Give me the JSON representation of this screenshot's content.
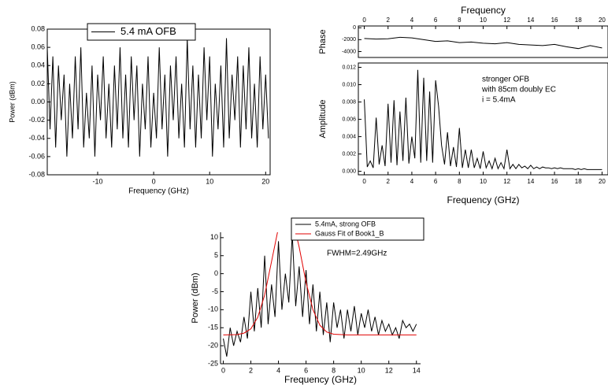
{
  "chart_data": [
    {
      "type": "line",
      "xlabel": "Frequency (GHz)",
      "ylabel": "Power (dBm)",
      "xlim": [
        -19,
        20.8
      ],
      "xticks": [
        -10,
        0,
        10,
        20
      ],
      "ylim": [
        -0.08,
        0.08
      ],
      "yticks": [
        {
          "value": -0.08,
          "label": "-0.08"
        },
        {
          "value": -0.06,
          "label": "-0.06"
        },
        {
          "value": -0.04,
          "label": "-0.04"
        },
        {
          "value": -0.02,
          "label": "-0.02"
        },
        {
          "value": 0,
          "label": "0.00"
        },
        {
          "value": 0.02,
          "label": "0.02"
        },
        {
          "value": 0.04,
          "label": "0.04"
        },
        {
          "value": 0.06,
          "label": "0.06"
        },
        {
          "value": 0.08,
          "label": "0.08"
        }
      ],
      "legend": "upper center",
      "series": [
        {
          "name": "5.4 mA OFB",
          "color": "#000000",
          "x": [
            -19,
            -18.5,
            -18,
            -17.5,
            -17,
            -16.5,
            -16,
            -15.5,
            -15,
            -14.5,
            -14,
            -13.5,
            -13,
            -12.5,
            -12,
            -11.5,
            -11,
            -10.5,
            -10,
            -9.5,
            -9,
            -8.5,
            -8,
            -7.5,
            -7,
            -6.5,
            -6,
            -5.5,
            -5,
            -4.5,
            -4,
            -3.5,
            -3,
            -2.5,
            -2,
            -1.5,
            -1,
            -0.5,
            0,
            0.5,
            1,
            1.5,
            2,
            2.5,
            3,
            3.5,
            4,
            4.5,
            5,
            5.5,
            6,
            6.5,
            7,
            7.5,
            8,
            8.5,
            9,
            9.5,
            10,
            10.5,
            11,
            11.5,
            12,
            12.5,
            13,
            13.5,
            14,
            14.5,
            15,
            15.5,
            16,
            16.5,
            17,
            17.5,
            18,
            18.5,
            19,
            19.5,
            20,
            20.5
          ],
          "values": [
            0.06,
            -0.03,
            0.05,
            -0.05,
            0.04,
            -0.02,
            0.03,
            -0.06,
            0.02,
            -0.04,
            0.05,
            -0.03,
            0.06,
            -0.05,
            0.01,
            -0.04,
            0.04,
            -0.06,
            0.03,
            -0.02,
            0.05,
            -0.04,
            0.02,
            -0.05,
            0.04,
            -0.03,
            0.06,
            -0.04,
            0.03,
            -0.05,
            0.05,
            -0.02,
            0.04,
            -0.06,
            0.02,
            -0.03,
            0.05,
            -0.05,
            0.01,
            -0.04,
            0.06,
            -0.03,
            0.03,
            -0.06,
            0.04,
            -0.02,
            0.05,
            -0.04,
            0.02,
            -0.05,
            0.07,
            -0.03,
            0.04,
            -0.05,
            0.03,
            -0.04,
            0.06,
            -0.02,
            0.05,
            -0.06,
            0.02,
            -0.03,
            0.04,
            -0.05,
            0.07,
            -0.04,
            0.03,
            -0.02,
            0.05,
            -0.05,
            0.04,
            -0.03,
            0.06,
            -0.04,
            0.02,
            -0.05,
            0.05,
            -0.03,
            0.03,
            -0.04
          ]
        }
      ]
    },
    {
      "type": "line",
      "xlabel": "Frequency",
      "ylabel": "Phase",
      "x_axis_side": "top",
      "xlim": [
        -0.5,
        20.5
      ],
      "xticks": [
        0,
        2,
        4,
        6,
        8,
        10,
        12,
        14,
        16,
        18,
        20
      ],
      "ylim": [
        -5000,
        300
      ],
      "yticks": [
        -4000,
        -2000,
        0
      ],
      "series": [
        {
          "color": "#000000",
          "x": [
            0,
            1,
            2,
            3,
            4,
            5,
            6,
            7,
            8,
            9,
            10,
            11,
            12,
            13,
            14,
            15,
            16,
            17,
            18,
            19,
            20
          ],
          "values": [
            -1800,
            -1900,
            -1850,
            -1600,
            -1700,
            -2000,
            -2300,
            -2200,
            -2500,
            -2400,
            -2600,
            -2700,
            -2500,
            -2800,
            -2900,
            -3000,
            -2800,
            -3200,
            -3500,
            -3000,
            -3400
          ]
        }
      ]
    },
    {
      "type": "line",
      "xlabel": "Frequency (GHz)",
      "ylabel": "Amplitude",
      "xlim": [
        -0.5,
        20.5
      ],
      "xticks": [
        0,
        2,
        4,
        6,
        8,
        10,
        12,
        14,
        16,
        18,
        20
      ],
      "ylim": [
        -0.0004,
        0.0125
      ],
      "yticks": [
        {
          "value": 0,
          "label": "0.000"
        },
        {
          "value": 0.002,
          "label": "0.002"
        },
        {
          "value": 0.004,
          "label": "0.004"
        },
        {
          "value": 0.006,
          "label": "0.006"
        },
        {
          "value": 0.008,
          "label": "0.008"
        },
        {
          "value": 0.01,
          "label": "0.010"
        },
        {
          "value": 0.012,
          "label": "0.012"
        }
      ],
      "annotations": [
        "stronger OFB",
        "with 85cm doubly EC",
        "i = 5.4mA"
      ],
      "series": [
        {
          "color": "#000000",
          "x": [
            0,
            0.25,
            0.5,
            0.75,
            1,
            1.25,
            1.5,
            1.75,
            2,
            2.25,
            2.5,
            2.75,
            3,
            3.25,
            3.5,
            3.75,
            4,
            4.25,
            4.5,
            4.75,
            5,
            5.25,
            5.5,
            5.75,
            6,
            6.25,
            6.5,
            6.75,
            7,
            7.25,
            7.5,
            7.75,
            8,
            8.25,
            8.5,
            8.75,
            9,
            9.25,
            9.5,
            9.75,
            10,
            10.25,
            10.5,
            10.75,
            11,
            11.25,
            11.5,
            11.75,
            12,
            12.25,
            12.5,
            12.75,
            13,
            13.25,
            13.5,
            13.75,
            14,
            14.25,
            14.5,
            14.75,
            15,
            15.25,
            15.5,
            15.75,
            16,
            16.25,
            16.5,
            16.75,
            17,
            17.25,
            17.5,
            17.75,
            18,
            18.25,
            18.5,
            18.75,
            19,
            19.25,
            19.5,
            19.75,
            20
          ],
          "values": [
            0.0083,
            0.0005,
            0.0012,
            0.0004,
            0.0062,
            0.0008,
            0.003,
            0.0006,
            0.0078,
            0.001,
            0.0082,
            0.0007,
            0.0069,
            0.0012,
            0.0085,
            0.0009,
            0.004,
            0.0015,
            0.0117,
            0.001,
            0.0108,
            0.0012,
            0.0092,
            0.001,
            0.0105,
            0.0075,
            0.003,
            0.0008,
            0.0045,
            0.0006,
            0.0028,
            0.0005,
            0.005,
            0.0004,
            0.0025,
            0.0004,
            0.0025,
            0.0004,
            0.0015,
            0.0003,
            0.0023,
            0.0004,
            0.0012,
            0.0003,
            0.0015,
            0.0003,
            0.001,
            0.0003,
            0.0025,
            0.0003,
            0.0008,
            0.0003,
            0.0008,
            0.0004,
            0.0006,
            0.0003,
            0.0007,
            0.0003,
            0.0005,
            0.0003,
            0.0005,
            0.0004,
            0.0004,
            0.0003,
            0.0004,
            0.0003,
            0.0004,
            0.0003,
            0.0003,
            0.0003,
            0.0003,
            0.0002,
            0.0003,
            0.0002,
            0.0003,
            0.0002,
            0.0002,
            0.0002,
            0.0002,
            0.0002,
            0.0002
          ]
        }
      ]
    },
    {
      "type": "line",
      "xlabel": "Frequency (GHz)",
      "ylabel": "Power (dBm)",
      "xlim": [
        -0.2,
        14.3
      ],
      "xticks": [
        0,
        2,
        4,
        6,
        8,
        10,
        12,
        14
      ],
      "ylim": [
        -25,
        11.5
      ],
      "yticks": [
        -25,
        -20,
        -15,
        -10,
        -5,
        0,
        5,
        10
      ],
      "legend": "upper right",
      "annotations": [
        "FWHM=2.49GHz"
      ],
      "series": [
        {
          "name": "5.4mA, strong OFB",
          "color": "#000000",
          "x": [
            0,
            0.25,
            0.5,
            0.75,
            1,
            1.25,
            1.5,
            1.75,
            2,
            2.25,
            2.5,
            2.75,
            3,
            3.25,
            3.5,
            3.75,
            4,
            4.25,
            4.5,
            4.75,
            5,
            5.25,
            5.5,
            5.75,
            6,
            6.25,
            6.5,
            6.75,
            7,
            7.25,
            7.5,
            7.75,
            8,
            8.25,
            8.5,
            8.75,
            9,
            9.25,
            9.5,
            9.75,
            10,
            10.25,
            10.5,
            10.75,
            11,
            11.25,
            11.5,
            11.75,
            12,
            12.25,
            12.5,
            12.75,
            13,
            13.25,
            13.5,
            13.75,
            14
          ],
          "values": [
            -18,
            -23,
            -15,
            -20,
            -16,
            -19,
            -12,
            -18,
            -5,
            -16,
            -4,
            -15,
            5,
            -14,
            -3,
            -12,
            9,
            -10,
            0,
            -8,
            11,
            -9,
            2,
            -12,
            1,
            -14,
            -3,
            -16,
            -5,
            -17,
            -8,
            -19,
            -8,
            -15,
            -10,
            -18,
            -10,
            -16,
            -9,
            -17,
            -11,
            -15,
            -10,
            -16,
            -12,
            -17,
            -13,
            -16,
            -14,
            -17,
            -15,
            -18,
            -13,
            -15,
            -14,
            -16,
            -14
          ]
        },
        {
          "name": "Gauss Fit of Book1_B",
          "color": "#e00000",
          "x": [
            0,
            1,
            1.5,
            2,
            2.5,
            3,
            3.5,
            4,
            4.5,
            5,
            5.5,
            6,
            6.5,
            7,
            7.5,
            8,
            9,
            10,
            11,
            12,
            13,
            14
          ],
          "values": [
            -17,
            -16.9,
            -16.5,
            -15.3,
            -12.1,
            -5.9,
            3.4,
            12.8,
            17.9,
            15.6,
            7.4,
            -2.4,
            -10,
            -14.3,
            -16.2,
            -16.8,
            -17,
            -17,
            -17,
            -17,
            -17,
            -17
          ]
        }
      ]
    }
  ]
}
